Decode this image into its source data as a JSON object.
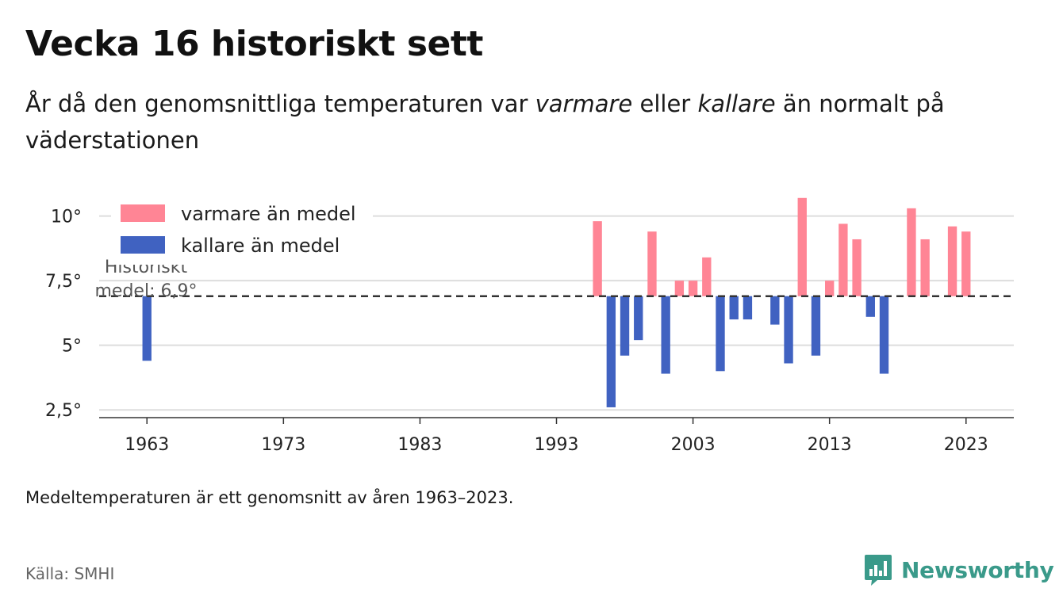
{
  "header": {
    "title": "Vecka 16 historiskt sett",
    "subtitle_parts": [
      "År då den genomsnittliga temperaturen var ",
      "varmare",
      " eller ",
      "kallare",
      " än normalt på väderstationen"
    ]
  },
  "footer": {
    "note": "Medeltemperaturen är ett genomsnitt av åren 1963–2023.",
    "source": "Källa: SMHI",
    "brand": "Newsworthy",
    "brand_icon": "newsworthy-logo-icon"
  },
  "chart_data": {
    "type": "bar",
    "baseline": 6.9,
    "baseline_label_lines": [
      "Historiskt",
      "medel: 6,9°"
    ],
    "ylim": [
      2.2,
      11
    ],
    "yticks": [
      2.5,
      5,
      7.5,
      10
    ],
    "ytick_labels": [
      "2,5°",
      "5°",
      "7,5°",
      "10°"
    ],
    "xlim": [
      1959.5,
      2026.5
    ],
    "xticks": [
      1963,
      1973,
      1983,
      1993,
      2003,
      2013,
      2023
    ],
    "xtick_labels": [
      "1963",
      "1973",
      "1983",
      "1993",
      "2003",
      "2013",
      "2023"
    ],
    "legend": [
      {
        "label": "varmare än medel",
        "color": "#ff8595"
      },
      {
        "label": "kallare än medel",
        "color": "#4062c1"
      }
    ],
    "colors": {
      "warm": "#ff8595",
      "cold": "#4062c1"
    },
    "x": [
      1963,
      1996,
      1997,
      1998,
      1999,
      2000,
      2001,
      2002,
      2003,
      2004,
      2005,
      2006,
      2007,
      2009,
      2010,
      2011,
      2012,
      2013,
      2014,
      2015,
      2016,
      2017,
      2019,
      2020,
      2022,
      2023
    ],
    "values": [
      4.4,
      9.8,
      2.6,
      4.6,
      5.2,
      9.4,
      3.9,
      7.5,
      7.5,
      8.4,
      4.0,
      6.0,
      6.0,
      5.8,
      4.3,
      10.7,
      4.6,
      7.5,
      9.7,
      9.1,
      6.1,
      3.9,
      10.3,
      9.1,
      9.6,
      9.4
    ]
  }
}
